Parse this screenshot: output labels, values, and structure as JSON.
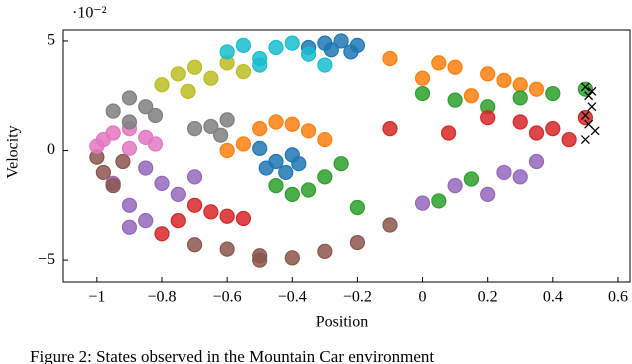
{
  "chart_data": {
    "type": "scatter",
    "x_label": "Position",
    "y_label": "Velocity",
    "y_scale_label": "·10⁻²",
    "caption": "Figure 2: States observed in the Mountain Car environment",
    "xlim": [
      -1.104,
      0.637
    ],
    "ylim": [
      -6.0,
      5.5
    ],
    "xticks": [
      {
        "value": -1,
        "label": "−1"
      },
      {
        "value": -0.8,
        "label": "−0.8"
      },
      {
        "value": -0.6,
        "label": "−0.6"
      },
      {
        "value": -0.4,
        "label": "−0.4"
      },
      {
        "value": -0.2,
        "label": "−0.2"
      },
      0,
      0.2,
      0.4,
      0.6
    ],
    "yticks": [
      {
        "value": -5,
        "label": "−5"
      },
      0,
      5
    ],
    "series": [
      {
        "color": "#1f77b4",
        "marker": "circle",
        "x": [
          -0.3,
          -0.25,
          -0.2,
          -0.22,
          -0.28,
          -0.35,
          -0.4,
          -0.45,
          -0.42,
          -0.38,
          -0.5,
          -0.48
        ],
        "y": [
          4.9,
          5.0,
          4.8,
          4.5,
          4.6,
          4.7,
          -0.2,
          -0.5,
          -1.0,
          -0.6,
          0.1,
          -0.8
        ]
      },
      {
        "color": "#ff7f0e",
        "marker": "circle",
        "x": [
          0.0,
          0.1,
          0.2,
          0.3,
          0.35,
          0.05,
          -0.1,
          -0.55,
          -0.5,
          -0.45,
          -0.4,
          -0.35,
          -0.3,
          -0.6,
          0.15,
          0.25
        ],
        "y": [
          3.3,
          3.8,
          3.5,
          3.0,
          2.8,
          4.0,
          4.2,
          0.3,
          1.0,
          1.3,
          1.2,
          0.9,
          0.5,
          0.0,
          2.5,
          3.2
        ]
      },
      {
        "color": "#2ca02c",
        "marker": "circle",
        "x": [
          0.0,
          0.1,
          0.2,
          0.3,
          0.4,
          0.5,
          -0.45,
          -0.4,
          -0.35,
          -0.3,
          -0.25,
          -0.2,
          0.05,
          0.15
        ],
        "y": [
          2.6,
          2.3,
          2.0,
          2.4,
          2.6,
          2.8,
          -1.6,
          -2.0,
          -1.8,
          -1.2,
          -0.6,
          -2.6,
          -2.3,
          -1.3
        ]
      },
      {
        "color": "#d62728",
        "marker": "circle",
        "x": [
          0.2,
          0.3,
          0.4,
          0.5,
          0.45,
          0.35,
          -0.8,
          -0.75,
          -0.7,
          -0.65,
          -0.6,
          -0.55,
          0.08,
          -0.1
        ],
        "y": [
          1.5,
          1.3,
          1.0,
          1.5,
          0.5,
          0.8,
          -3.8,
          -3.2,
          -2.5,
          -2.8,
          -3.0,
          -3.1,
          0.8,
          1.0
        ]
      },
      {
        "color": "#9467bd",
        "marker": "circle",
        "x": [
          -0.95,
          -0.9,
          -0.85,
          -0.8,
          -0.75,
          -0.9,
          0.0,
          0.1,
          0.2,
          0.3,
          0.35,
          0.25,
          -0.7,
          -0.85
        ],
        "y": [
          -1.5,
          -2.5,
          -3.2,
          -1.5,
          -2.0,
          -3.5,
          -2.4,
          -1.6,
          -2.0,
          -1.2,
          -0.5,
          -1.0,
          -1.2,
          -0.8
        ]
      },
      {
        "color": "#8c564b",
        "marker": "circle",
        "x": [
          -1.0,
          -0.98,
          -0.95,
          -0.92,
          -0.6,
          -0.5,
          -0.4,
          -0.3,
          -0.2,
          -0.1,
          -0.7,
          -0.5
        ],
        "y": [
          -0.3,
          -1.0,
          -1.6,
          -0.5,
          -4.5,
          -4.8,
          -4.9,
          -4.6,
          -4.2,
          -3.4,
          -4.3,
          -5.0
        ]
      },
      {
        "color": "#e377c2",
        "marker": "circle",
        "x": [
          -1.0,
          -0.95,
          -0.9,
          -0.85,
          -0.82,
          -0.98,
          -0.9
        ],
        "y": [
          0.2,
          0.8,
          0.1,
          0.6,
          0.3,
          0.5,
          1.0
        ]
      },
      {
        "color": "#7f7f7f",
        "marker": "circle",
        "x": [
          -0.95,
          -0.9,
          -0.85,
          -0.82,
          -0.9,
          -0.7,
          -0.65,
          -0.6,
          -0.62
        ],
        "y": [
          1.8,
          2.4,
          2.0,
          1.6,
          1.3,
          1.0,
          1.1,
          1.4,
          0.7
        ]
      },
      {
        "color": "#bcbd22",
        "marker": "circle",
        "x": [
          -0.8,
          -0.75,
          -0.7,
          -0.65,
          -0.6,
          -0.55,
          -0.72
        ],
        "y": [
          3.0,
          3.5,
          3.8,
          3.3,
          4.0,
          3.6,
          2.7
        ]
      },
      {
        "color": "#17becf",
        "marker": "circle",
        "x": [
          -0.6,
          -0.55,
          -0.5,
          -0.45,
          -0.4,
          -0.35,
          -0.3,
          -0.5
        ],
        "y": [
          4.5,
          4.8,
          4.2,
          4.7,
          4.9,
          4.4,
          3.9,
          3.9
        ]
      },
      {
        "color": "#000000",
        "marker": "x",
        "x": [
          0.5,
          0.51,
          0.52,
          0.5,
          0.51,
          0.53,
          0.5,
          0.52
        ],
        "y": [
          2.9,
          2.5,
          2.0,
          1.6,
          1.2,
          0.9,
          0.5,
          2.7
        ]
      }
    ]
  }
}
